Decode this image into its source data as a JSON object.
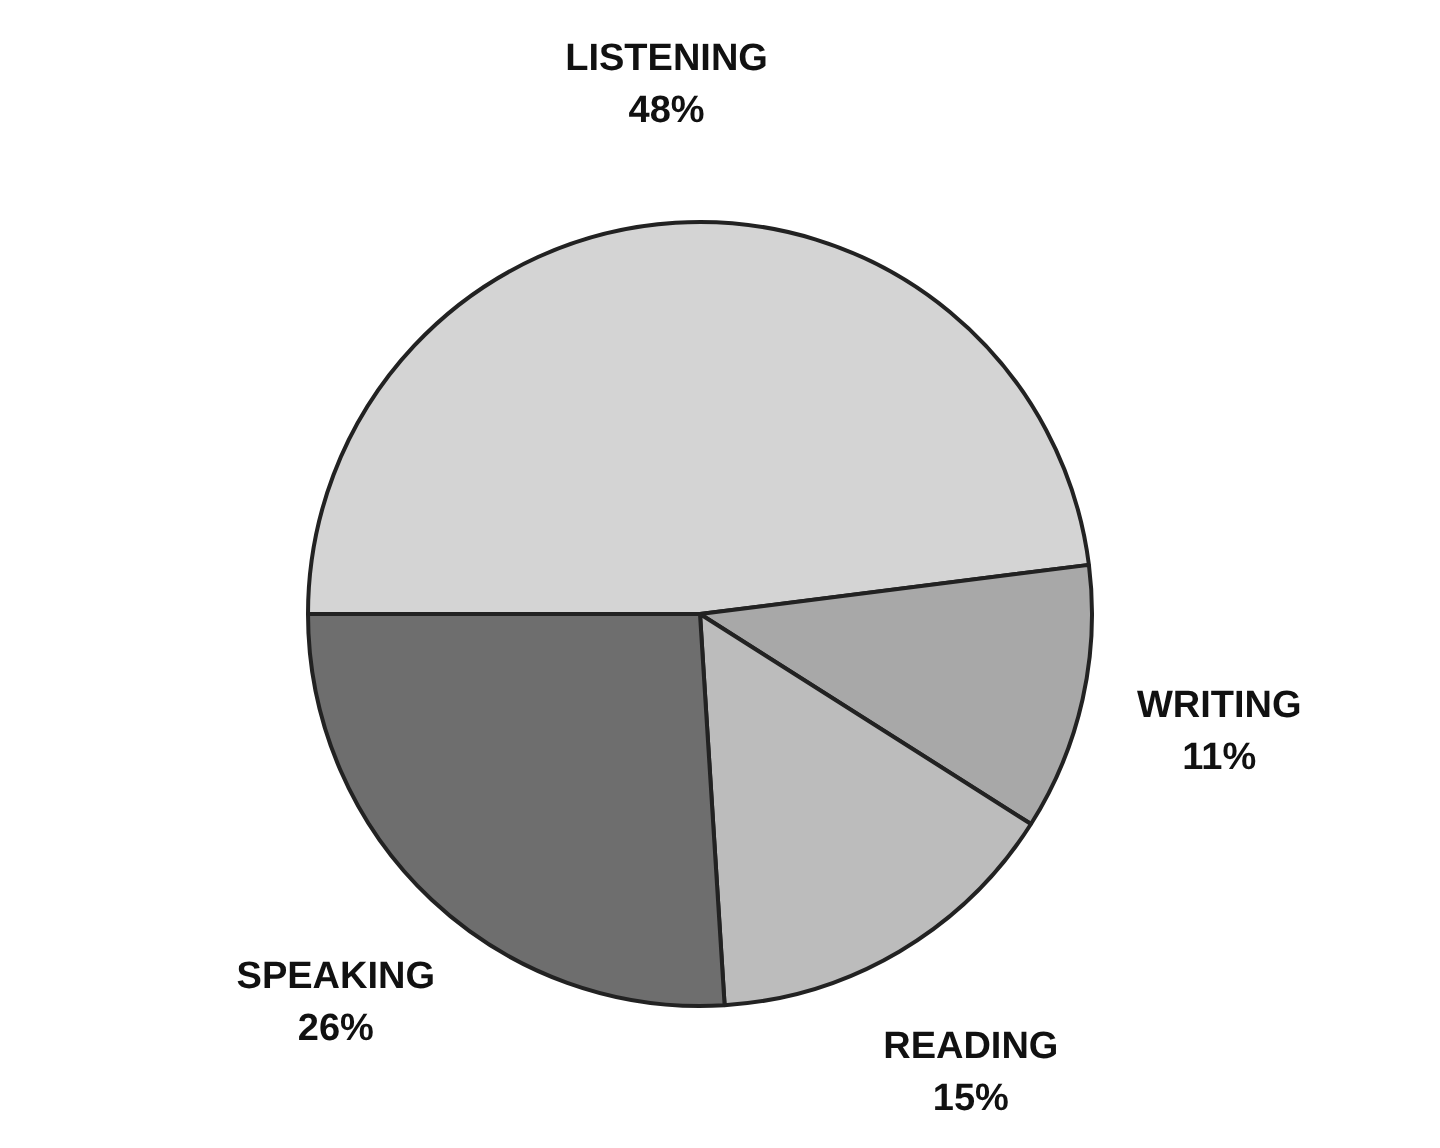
{
  "chart_data": {
    "type": "pie",
    "categories": [
      "LISTENING",
      "WRITING",
      "READING",
      "SPEAKING"
    ],
    "values": [
      48,
      11,
      15,
      26
    ],
    "value_labels": [
      "48%",
      "11%",
      "15%",
      "26%"
    ],
    "colors": [
      "#d4d4d4",
      "#a8a8a8",
      "#bcbcbc",
      "#6e6e6e"
    ]
  }
}
